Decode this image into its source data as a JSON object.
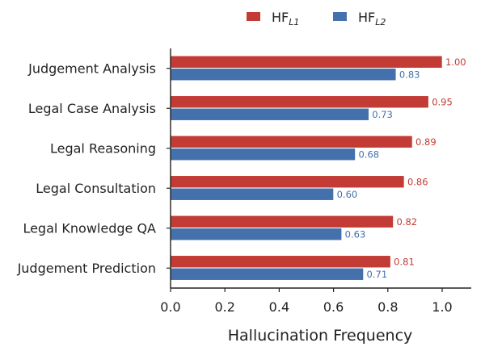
{
  "colors": {
    "l1": "#c23b34",
    "l2": "#4470ab"
  },
  "legend": [
    {
      "base": "HF",
      "sub": "L1",
      "color": "#c23b34"
    },
    {
      "base": "HF",
      "sub": "L2",
      "color": "#4470ab"
    }
  ],
  "chart_data": {
    "type": "bar",
    "orientation": "horizontal",
    "categories": [
      "Judgement Analysis",
      "Legal Case Analysis",
      "Legal Reasoning",
      "Legal Consultation",
      "Legal Knowledge QA",
      "Judgement Prediction"
    ],
    "series": [
      {
        "name": "HF_L1",
        "color": "#c23b34",
        "values": [
          1.0,
          0.95,
          0.89,
          0.86,
          0.82,
          0.81
        ],
        "labels": [
          "1.00",
          "0.95",
          "0.89",
          "0.86",
          "0.82",
          "0.81"
        ]
      },
      {
        "name": "HF_L2",
        "color": "#4470ab",
        "values": [
          0.83,
          0.73,
          0.68,
          0.6,
          0.63,
          0.71
        ],
        "labels": [
          "0.83",
          "0.73",
          "0.68",
          "0.60",
          "0.63",
          "0.71"
        ]
      }
    ],
    "xlabel": "Hallucination Frequency",
    "xlim": [
      0,
      1.1
    ],
    "xticks": [
      "0.0",
      "0.2",
      "0.4",
      "0.6",
      "0.8",
      "1.0"
    ],
    "grid": false,
    "legend_position": "top"
  }
}
